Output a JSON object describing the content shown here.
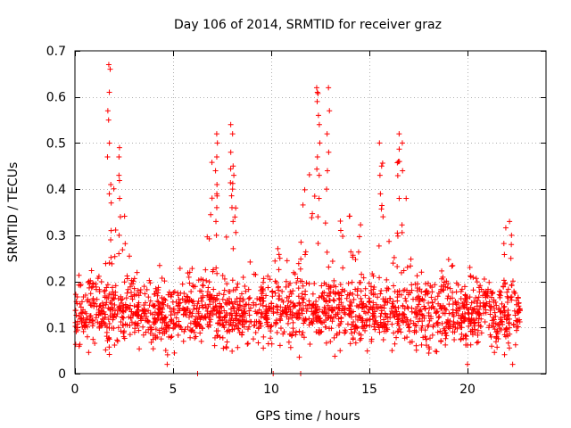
{
  "chart_data": {
    "type": "scatter",
    "title": "Day 106 of 2014, SRMTID for receiver graz",
    "xlabel": "GPS time / hours",
    "ylabel": "SRMTID / TECUs",
    "xlim": [
      0,
      24
    ],
    "ylim": [
      0,
      0.7
    ],
    "x_ticks": [
      0,
      5,
      10,
      15,
      20
    ],
    "x_tick_labels": [
      "0",
      "5",
      "10",
      "15",
      "20"
    ],
    "y_ticks": [
      0,
      0.1,
      0.2,
      0.3,
      0.4,
      0.5,
      0.6,
      0.7
    ],
    "y_tick_labels": [
      "0",
      "0.1",
      "0.2",
      "0.3",
      "0.4",
      "0.5",
      "0.6",
      "0.7"
    ],
    "grid": true,
    "marker": "plus",
    "color": "#ff0000",
    "baseline_level": 0.13,
    "baseline_spread": 0.035,
    "envelope": [
      [
        0,
        0.26
      ],
      [
        1.5,
        0.2
      ],
      [
        1.75,
        0.67
      ],
      [
        2.1,
        0.3
      ],
      [
        2.3,
        0.49
      ],
      [
        3,
        0.22
      ],
      [
        4.7,
        0.24
      ],
      [
        5.6,
        0.24
      ],
      [
        6.5,
        0.25
      ],
      [
        7,
        0.5
      ],
      [
        7.3,
        0.4
      ],
      [
        8,
        0.54
      ],
      [
        8.5,
        0.27
      ],
      [
        10.2,
        0.27
      ],
      [
        10.5,
        0.32
      ],
      [
        11,
        0.2
      ],
      [
        12.4,
        0.62
      ],
      [
        12.9,
        0.49
      ],
      [
        13.5,
        0.4
      ],
      [
        14.5,
        0.33
      ],
      [
        15.5,
        0.5
      ],
      [
        16,
        0.42
      ],
      [
        16.6,
        0.52
      ],
      [
        17.2,
        0.24
      ],
      [
        18.2,
        0.2
      ],
      [
        19,
        0.27
      ],
      [
        21,
        0.2
      ],
      [
        22,
        0.33
      ],
      [
        22.7,
        0.13
      ]
    ],
    "peak_events": [
      {
        "x": 1.75,
        "y": [
          0.67,
          0.66,
          0.61,
          0.57,
          0.55,
          0.47,
          0.41,
          0.39,
          0.37,
          0.31,
          0.29,
          0.24
        ]
      },
      {
        "x": 2.3,
        "y": [
          0.49,
          0.47,
          0.43,
          0.38,
          0.34,
          0.3,
          0.26
        ]
      },
      {
        "x": 7.2,
        "y": [
          0.52,
          0.5,
          0.47,
          0.44,
          0.41,
          0.39,
          0.36,
          0.33,
          0.3
        ]
      },
      {
        "x": 8.0,
        "y": [
          0.54,
          0.52,
          0.48,
          0.45,
          0.43,
          0.4,
          0.36,
          0.33
        ]
      },
      {
        "x": 12.4,
        "y": [
          0.62,
          0.61,
          0.59,
          0.56,
          0.54,
          0.5,
          0.47,
          0.43,
          0.38,
          0.34
        ]
      },
      {
        "x": 12.9,
        "y": [
          0.62,
          0.57,
          0.52,
          0.48,
          0.44,
          0.4
        ]
      },
      {
        "x": 15.6,
        "y": [
          0.5,
          0.45,
          0.43,
          0.39,
          0.34
        ]
      },
      {
        "x": 16.6,
        "y": [
          0.52,
          0.5,
          0.46,
          0.44,
          0.38
        ]
      },
      {
        "x": 22.2,
        "y": [
          0.33,
          0.3,
          0.28,
          0.25
        ]
      }
    ],
    "low_outliers": [
      [
        4.7,
        0.02
      ],
      [
        6.25,
        0.0
      ],
      [
        10.1,
        0.0
      ],
      [
        11.5,
        0.0
      ],
      [
        20.0,
        0.02
      ],
      [
        22.3,
        0.02
      ]
    ]
  }
}
